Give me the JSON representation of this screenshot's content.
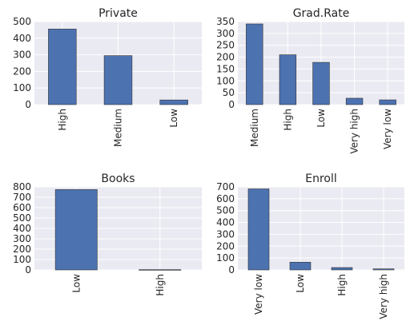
{
  "chart_data": [
    {
      "type": "bar",
      "title": "Private",
      "categories": [
        "High",
        "Medium",
        "Low"
      ],
      "values": [
        455,
        295,
        28
      ],
      "ylim": [
        0,
        500
      ],
      "yticks": [
        0,
        100,
        200,
        300,
        400,
        500
      ],
      "grid": true,
      "bar_color": "#4c72b0"
    },
    {
      "type": "bar",
      "title": "Grad.Rate",
      "categories": [
        "Medium",
        "High",
        "Low",
        "Very high",
        "Very low"
      ],
      "values": [
        340,
        210,
        178,
        27,
        20
      ],
      "ylim": [
        0,
        350
      ],
      "yticks": [
        0,
        50,
        100,
        150,
        200,
        250,
        300,
        350
      ],
      "grid": true,
      "bar_color": "#4c72b0"
    },
    {
      "type": "bar",
      "title": "Books",
      "categories": [
        "Low",
        "High"
      ],
      "values": [
        774,
        3
      ],
      "ylim": [
        0,
        800
      ],
      "yticks": [
        0,
        100,
        200,
        300,
        400,
        500,
        600,
        700,
        800
      ],
      "grid": true,
      "bar_color": "#4c72b0"
    },
    {
      "type": "bar",
      "title": "Enroll",
      "categories": [
        "Very low",
        "Low",
        "High",
        "Very high"
      ],
      "values": [
        683,
        65,
        20,
        9
      ],
      "ylim": [
        0,
        700
      ],
      "yticks": [
        0,
        100,
        200,
        300,
        400,
        500,
        600,
        700
      ],
      "grid": true,
      "bar_color": "#4c72b0"
    }
  ]
}
